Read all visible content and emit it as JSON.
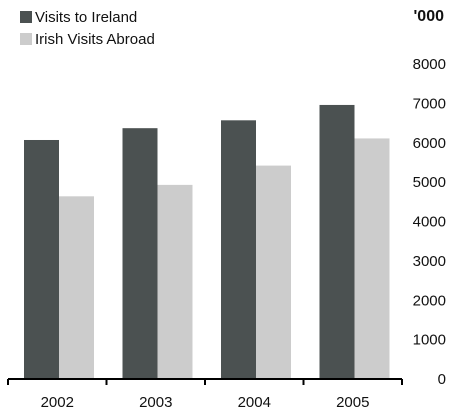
{
  "chart_data": {
    "type": "bar",
    "categories": [
      "2002",
      "2003",
      "2004",
      "2005"
    ],
    "series": [
      {
        "name": "Visits to Ireland",
        "values": [
          6070,
          6370,
          6570,
          6960
        ],
        "color": "#4b5151"
      },
      {
        "name": "Irish Visits Abroad",
        "values": [
          4640,
          4930,
          5420,
          6110
        ],
        "color": "#cccccc"
      }
    ],
    "ylabel": "'000",
    "ylim": [
      0,
      8000
    ],
    "yticks": [
      "0",
      "1000",
      "2000",
      "3000",
      "4000",
      "5000",
      "6000",
      "7000",
      "8000"
    ],
    "grid": false,
    "legend_position": "top-left"
  }
}
